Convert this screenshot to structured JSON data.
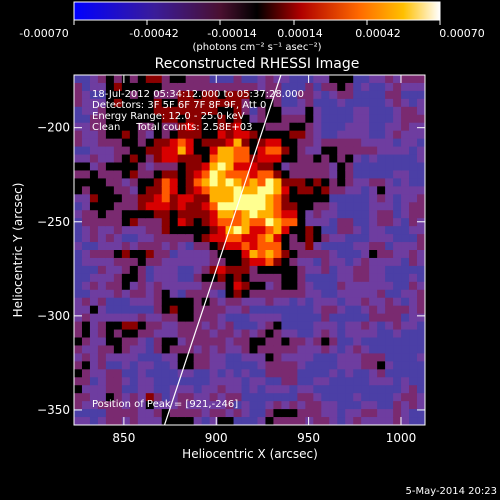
{
  "colorbar": {
    "ticks": [
      "-0.00070",
      "-0.00042",
      "-0.00014",
      "0.00014",
      "0.00042",
      "0.00070"
    ],
    "unit_label": "(photons cm⁻² s⁻¹ asec⁻²)"
  },
  "chart_data": {
    "type": "heatmap",
    "title": "Reconstructed RHESSI Image",
    "xlabel": "Heliocentric X (arcsec)",
    "ylabel": "Heliocentric Y (arcsec)",
    "xlim": [
      823,
      1013
    ],
    "ylim": [
      -358,
      -172
    ],
    "xticks": [
      850,
      900,
      950,
      1000
    ],
    "yticks": [
      -200,
      -250,
      -300,
      -350
    ],
    "colorscale": [
      "#0000ff",
      "#4b3fa6",
      "#6e3da0",
      "#7a2a70",
      "#000000",
      "#8a0000",
      "#d80000",
      "#ff5a00",
      "#ffb000",
      "#ffff90"
    ],
    "colorbar_range": [
      -0.0007,
      0.0007
    ],
    "annotations": [
      "18-Jul-2012 05:34:12.000 to 05:37:28.000",
      "Detectors: 3F 5F 6F 7F 8F 9F, Att 0",
      "Energy Range: 12.0 - 25.0 keV",
      "Clean     Total counts: 2.58E+03"
    ],
    "peak_label": "Position of Peak = [921,-246]",
    "peak": [
      921,
      -246
    ],
    "limb_line": [
      [
        872,
        -358
      ],
      [
        935,
        -172
      ]
    ],
    "timestamp": "5-May-2014 20:23"
  }
}
